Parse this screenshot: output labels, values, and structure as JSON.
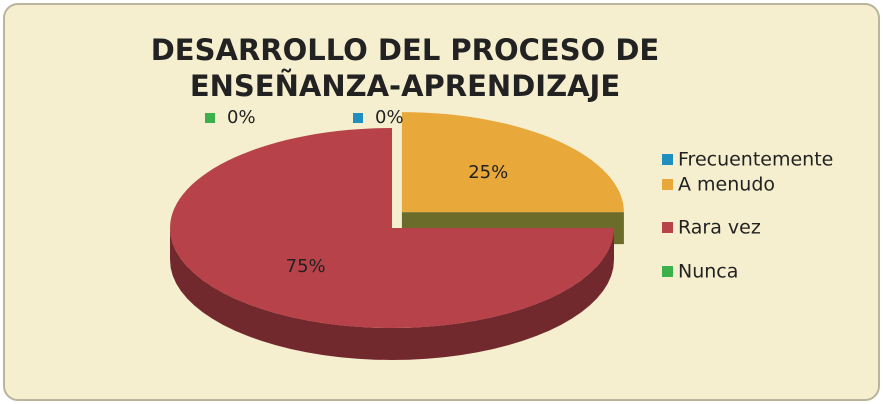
{
  "chart_data": {
    "type": "pie3d",
    "title": [
      "DESARROLLO DEL PROCESO DE",
      "ENSEÑANZA-APRENDIZAJE"
    ],
    "categories": [
      "Frecuentemente",
      "A menudo",
      "Rara vez",
      "Nunca"
    ],
    "values": [
      0,
      25,
      75,
      0
    ],
    "value_labels": [
      "0%",
      "25%",
      "75%",
      "0%"
    ],
    "colors": [
      "#1f8fc0",
      "#e8a83a",
      "#b8424a",
      "#3cb04a"
    ]
  }
}
